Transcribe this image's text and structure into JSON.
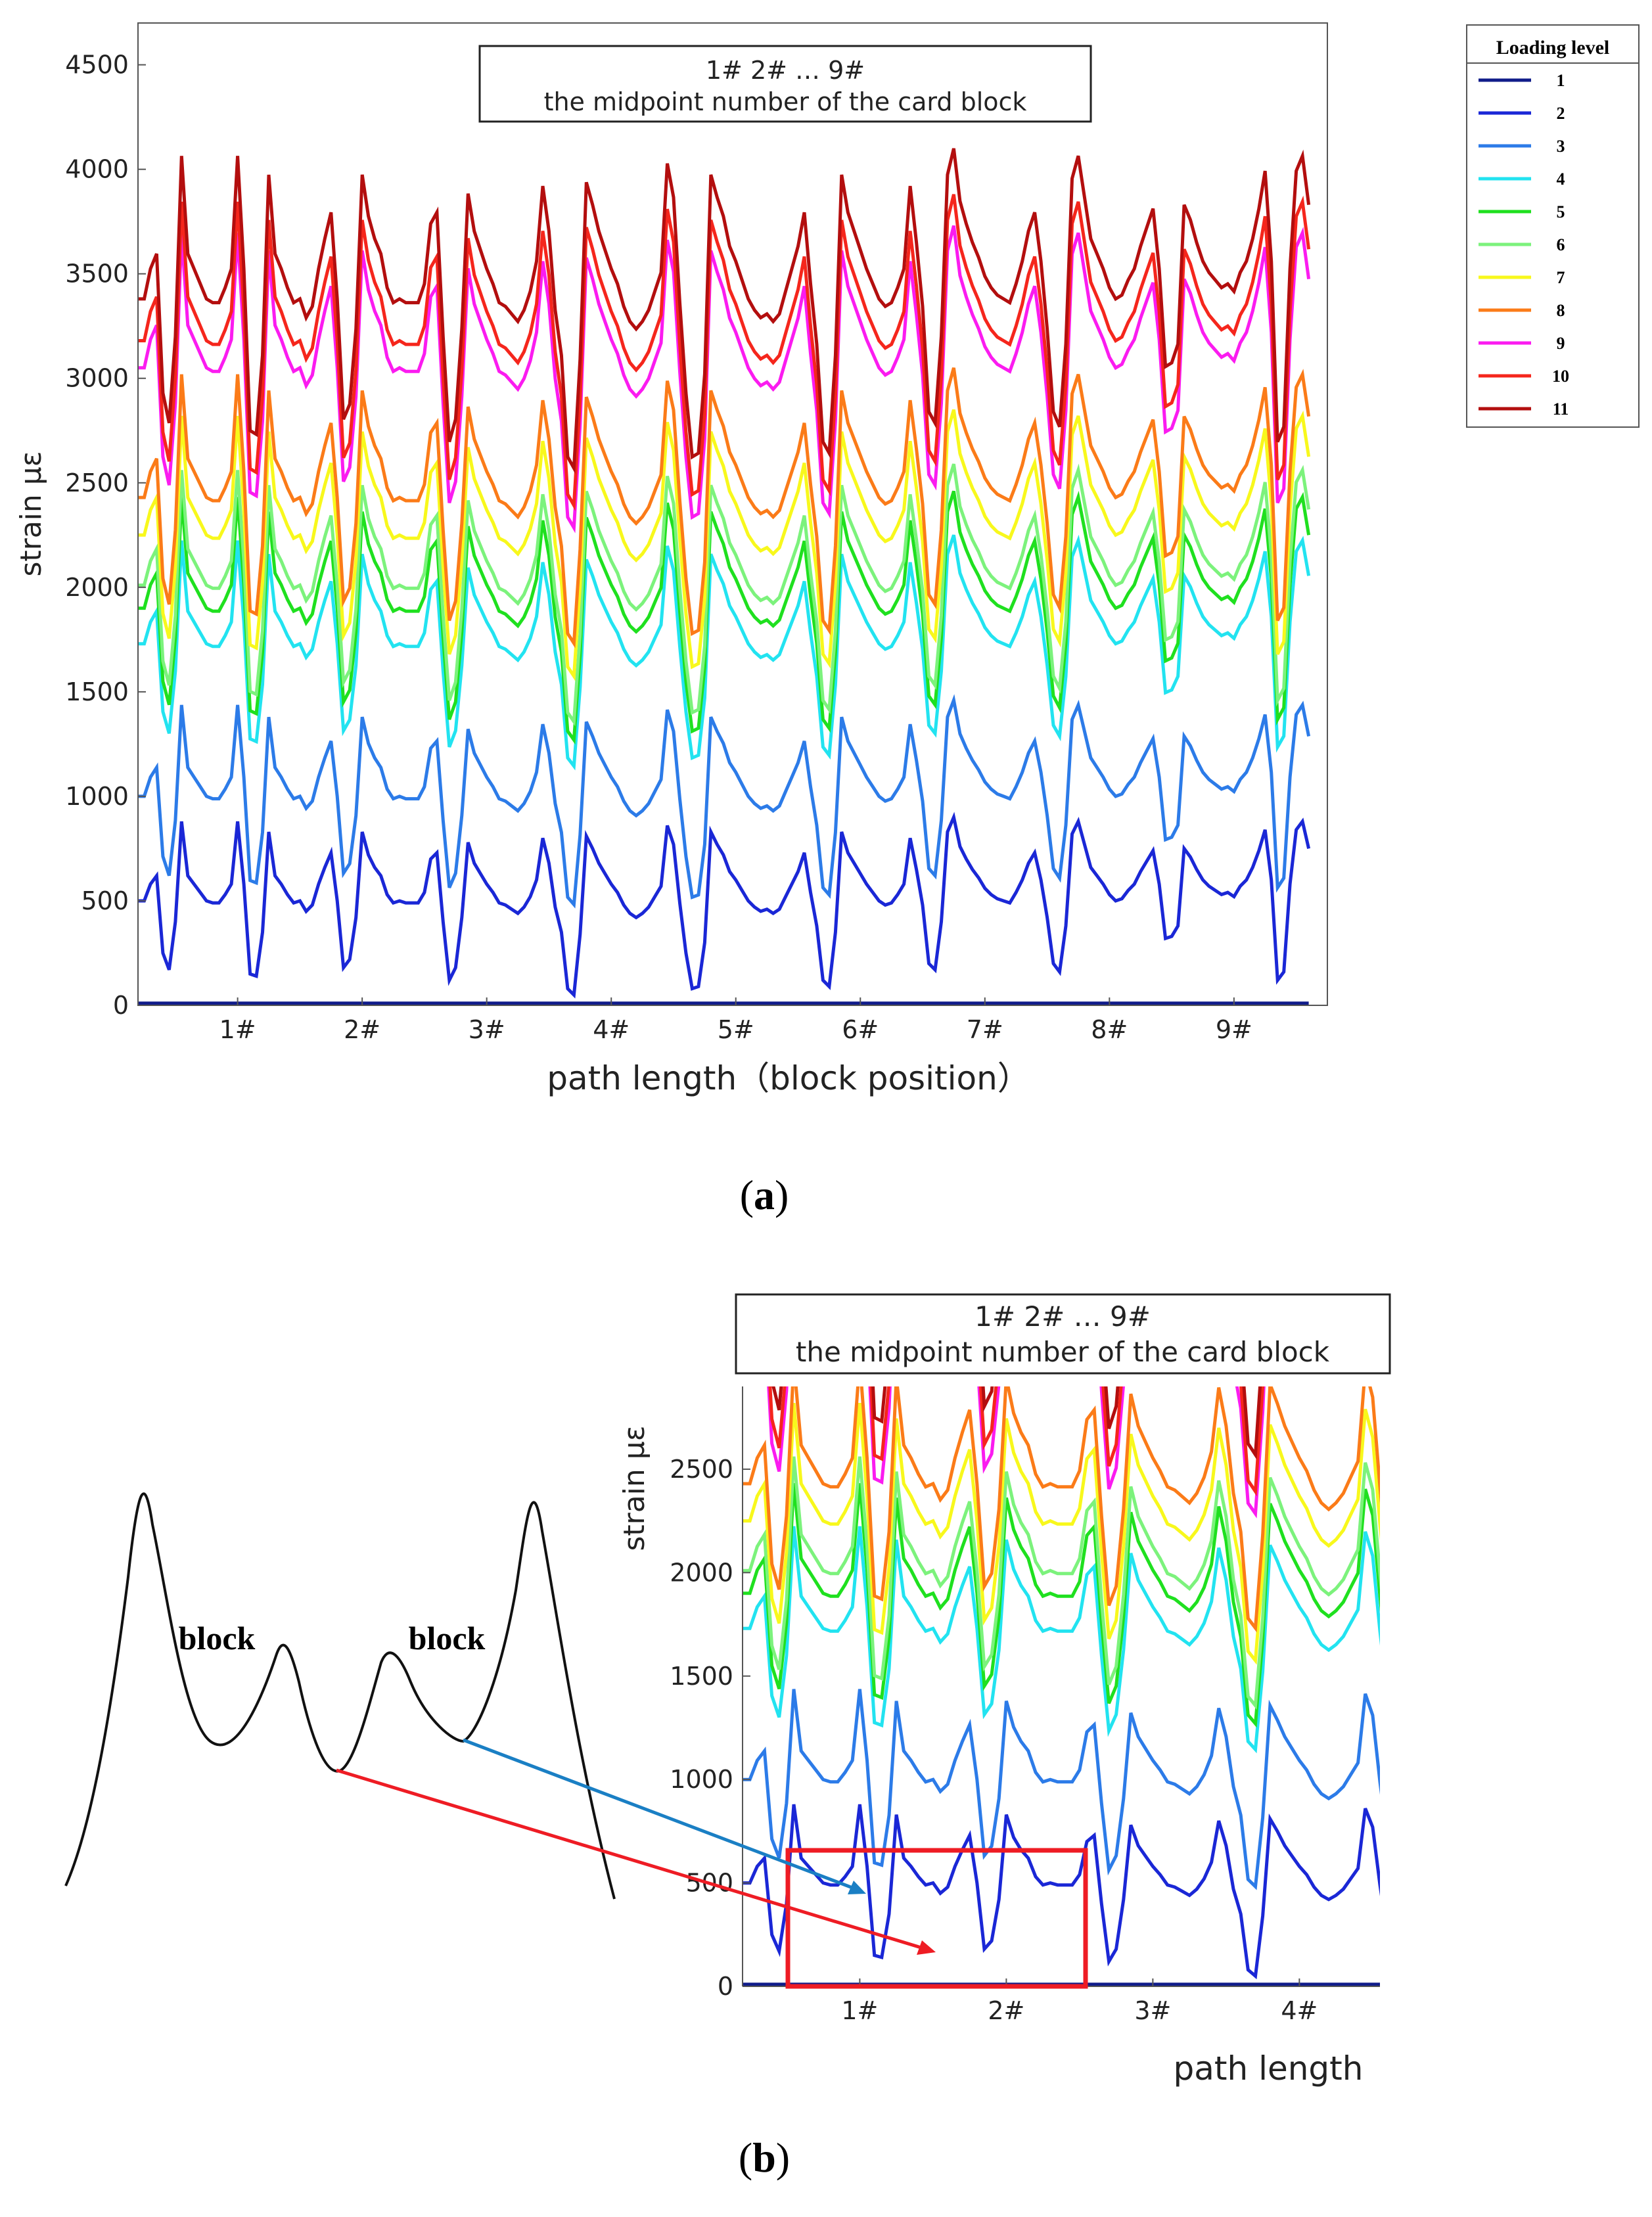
{
  "panel_a": {
    "subcaption": {
      "open": "(",
      "letter": "a",
      "close": ")"
    },
    "annotation": {
      "line1": "1# 2# … 9#",
      "line2": "the midpoint number of the card block"
    },
    "legend": {
      "title": "Loading level",
      "entries": [
        "1",
        "2",
        "3",
        "4",
        "5",
        "6",
        "7",
        "8",
        "9",
        "10",
        "11"
      ],
      "colors": [
        "#101c8a",
        "#1a27d6",
        "#2c7be8",
        "#22e3f0",
        "#1fe01f",
        "#7cf27c",
        "#f8f81c",
        "#fb7b18",
        "#fb1bf0",
        "#f5261c",
        "#b30e0e"
      ]
    }
  },
  "panel_b": {
    "subcaption": {
      "open": "(",
      "letter": "b",
      "close": ")"
    },
    "annotation": {
      "line1": "1# 2# … 9#",
      "line2": "the midpoint number of the card block"
    },
    "sketch": {
      "block_label_1": "block",
      "block_label_2": "block"
    }
  },
  "chart_data": [
    {
      "type": "line",
      "title": "",
      "xlabel": "path length（block position）",
      "ylabel": "strain με",
      "x_tick_labels": [
        "1#",
        "2#",
        "3#",
        "4#",
        "5#",
        "6#",
        "7#",
        "8#",
        "9#"
      ],
      "x_tick_positions": [
        1,
        2,
        3,
        4,
        5,
        6,
        7,
        8,
        9
      ],
      "xlim": [
        0.2,
        9.75
      ],
      "ylim": [
        0,
        4700
      ],
      "yticks": [
        0,
        500,
        1000,
        1500,
        2000,
        2500,
        3000,
        3500,
        4000,
        4500
      ],
      "legend_title": "Loading level",
      "series_base_offsets": [
        10,
        500,
        1000,
        1730,
        1900,
        2010,
        2250,
        2430,
        3050,
        3180,
        3380
      ],
      "series_names": [
        "1",
        "2",
        "3",
        "4",
        "5",
        "6",
        "7",
        "8",
        "9",
        "10",
        "11"
      ],
      "profile_x": [
        0.2,
        0.25,
        0.3,
        0.35,
        0.4,
        0.45,
        0.5,
        0.55,
        0.6,
        0.65,
        0.7,
        0.75,
        0.8,
        0.85,
        0.9,
        0.95,
        1.0,
        1.05,
        1.1,
        1.15,
        1.2,
        1.25,
        1.3,
        1.35,
        1.4,
        1.45,
        1.5,
        1.55,
        1.6,
        1.65,
        1.7,
        1.75,
        1.8,
        1.85,
        1.9,
        1.95,
        2.0,
        2.05,
        2.1,
        2.15,
        2.2,
        2.25,
        2.3,
        2.35,
        2.4,
        2.45,
        2.5,
        2.55,
        2.6,
        2.65,
        2.7,
        2.75,
        2.8,
        2.85,
        2.9,
        2.95,
        3.0,
        3.05,
        3.1,
        3.15,
        3.2,
        3.25,
        3.3,
        3.35,
        3.4,
        3.45,
        3.5,
        3.55,
        3.6,
        3.65,
        3.7,
        3.75,
        3.8,
        3.85,
        3.9,
        3.95,
        4.0,
        4.05,
        4.1,
        4.15,
        4.2,
        4.25,
        4.3,
        4.35,
        4.4,
        4.45,
        4.5,
        4.55,
        4.6,
        4.65,
        4.7,
        4.75,
        4.8,
        4.85,
        4.9,
        4.95,
        5.0,
        5.05,
        5.1,
        5.15,
        5.2,
        5.25,
        5.3,
        5.35,
        5.4,
        5.45,
        5.5,
        5.55,
        5.6,
        5.65,
        5.7,
        5.75,
        5.8,
        5.85,
        5.9,
        5.95,
        6.0,
        6.05,
        6.1,
        6.15,
        6.2,
        6.25,
        6.3,
        6.35,
        6.4,
        6.45,
        6.5,
        6.55,
        6.6,
        6.65,
        6.7,
        6.75,
        6.8,
        6.85,
        6.9,
        6.95,
        7.0,
        7.05,
        7.1,
        7.15,
        7.2,
        7.25,
        7.3,
        7.35,
        7.4,
        7.45,
        7.5,
        7.55,
        7.6,
        7.65,
        7.7,
        7.75,
        7.8,
        7.85,
        7.9,
        7.95,
        8.0,
        8.05,
        8.1,
        8.15,
        8.2,
        8.25,
        8.3,
        8.35,
        8.4,
        8.45,
        8.5,
        8.55,
        8.6,
        8.65,
        8.7,
        8.75,
        8.8,
        8.85,
        8.9,
        8.95,
        9.0,
        9.05,
        9.1,
        9.15,
        9.2,
        9.25,
        9.3,
        9.35,
        9.4,
        9.45,
        9.5,
        9.55,
        9.6,
        9.65,
        9.7,
        9.75
      ],
      "profile_values": [
        0,
        0,
        80,
        120,
        -250,
        -330,
        -100,
        380,
        120,
        80,
        40,
        0,
        -10,
        -10,
        30,
        80,
        380,
        80,
        -350,
        -360,
        -150,
        330,
        120,
        80,
        30,
        -10,
        0,
        -50,
        -20,
        80,
        160,
        230,
        0,
        -320,
        -280,
        -80,
        330,
        220,
        160,
        120,
        30,
        -10,
        0,
        -10,
        -10,
        -10,
        40,
        200,
        230,
        -100,
        -380,
        -320,
        -80,
        280,
        180,
        130,
        80,
        40,
        -10,
        -20,
        -40,
        -60,
        -30,
        20,
        100,
        300,
        180,
        -30,
        -150,
        -420,
        -450,
        -160,
        310,
        250,
        180,
        130,
        80,
        40,
        -20,
        -60,
        -80,
        -60,
        -30,
        20,
        70,
        360,
        270,
        -10,
        -250,
        -420,
        -410,
        -200,
        330,
        270,
        220,
        140,
        100,
        50,
        0,
        -30,
        -50,
        -40,
        -60,
        -40,
        20,
        80,
        140,
        230,
        40,
        -120,
        -380,
        -410,
        -150,
        330,
        230,
        180,
        130,
        80,
        40,
        0,
        -20,
        -10,
        30,
        80,
        300,
        150,
        -20,
        -300,
        -330,
        -100,
        330,
        400,
        260,
        200,
        150,
        110,
        60,
        30,
        10,
        0,
        -10,
        40,
        100,
        180,
        230,
        100,
        -80,
        -300,
        -340,
        -120,
        320,
        380,
        270,
        160,
        120,
        80,
        30,
        0,
        10,
        50,
        80,
        140,
        190,
        240,
        80,
        -180,
        -170,
        -120,
        250,
        210,
        150,
        100,
        70,
        50,
        30,
        40,
        20,
        70,
        100,
        160,
        240,
        340,
        100,
        -380,
        -340,
        80,
        340,
        380,
        250
      ]
    },
    {
      "type": "line",
      "title": "",
      "xlabel": "path length",
      "ylabel": "strain με",
      "x_tick_labels": [
        "1#",
        "2#",
        "3#",
        "4#"
      ],
      "x_tick_positions": [
        1,
        2,
        3,
        4
      ],
      "xlim": [
        0.2,
        4.55
      ],
      "ylim": [
        0,
        2900
      ],
      "yticks": [
        0,
        500,
        1000,
        1500,
        2000,
        2500
      ],
      "highlight_box": {
        "x_range": [
          0.5,
          2.5
        ],
        "y_range": [
          0,
          900
        ]
      },
      "series_names": [
        "1",
        "2",
        "3",
        "4",
        "5",
        "6",
        "7",
        "8",
        "9",
        "10",
        "11"
      ]
    }
  ]
}
